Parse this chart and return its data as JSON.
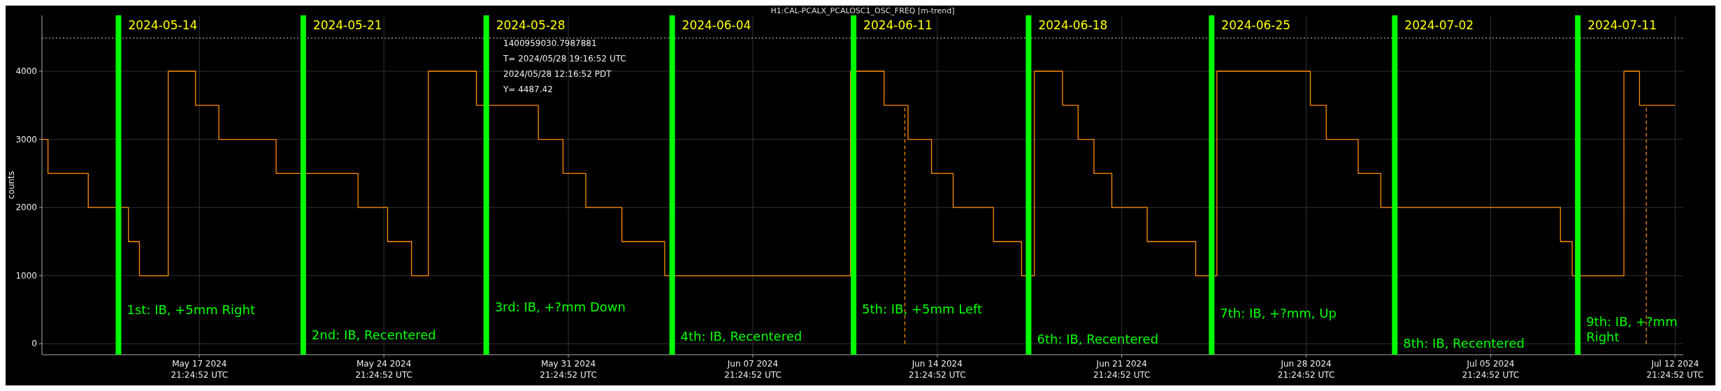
{
  "chart_data": {
    "type": "step",
    "title": "H1:CAL-PCALX_PCALOSC1_OSC_FREQ [m-trend]",
    "ylabel": "counts",
    "xlim": [
      "2024-05-11T22:00",
      "2024-07-13T04:50"
    ],
    "xticks": [
      {
        "value": "2024-05-17T21:24:52",
        "label": "May 17 2024\n21:24:52 UTC"
      },
      {
        "value": "2024-05-24T21:24:52",
        "label": "May 24 2024\n21:24:52 UTC"
      },
      {
        "value": "2024-05-31T21:24:52",
        "label": "May 31 2024\n21:24:52 UTC"
      },
      {
        "value": "2024-06-07T21:24:52",
        "label": "Jun 07 2024\n21:24:52 UTC"
      },
      {
        "value": "2024-06-14T21:24:52",
        "label": "Jun 14 2024\n21:24:52 UTC"
      },
      {
        "value": "2024-06-21T21:24:52",
        "label": "Jun 21 2024\n21:24:52 UTC"
      },
      {
        "value": "2024-06-28T21:24:52",
        "label": "Jun 28 2024\n21:24:52 UTC"
      },
      {
        "value": "2024-07-05T21:24:52",
        "label": "Jul 05 2024\n21:24:52 UTC"
      },
      {
        "value": "2024-07-12T21:24:52",
        "label": "Jul 12 2024\n21:24:52 UTC"
      }
    ],
    "ylim": [
      -160,
      4820
    ],
    "yticks": [
      0,
      1000,
      2000,
      3000,
      4000
    ],
    "grid": true,
    "series": [
      {
        "color": "#ff8c00",
        "x": [
          "2024-05-11T22:00",
          "2024-05-12T03:30",
          "2024-05-13T16:12",
          "2024-05-15T04:48",
          "2024-05-15T14:48",
          "2024-05-16T17:00",
          "2024-05-17T17:54",
          "2024-05-18T15:06",
          "2024-05-20T19:18",
          "2024-05-23T21:54",
          "2024-05-25T00:48",
          "2024-05-25T22:36",
          "2024-05-26T13:54",
          "2024-05-28T09:42",
          "2024-05-30T18:06",
          "2024-05-31T16:36",
          "2024-06-01T13:18",
          "2024-06-02T22:12",
          "2024-06-04T13:12",
          "2024-06-11T14:24",
          "2024-06-12T21:00",
          "2024-06-13T18:48",
          "2024-06-14T16:12",
          "2024-06-15T11:54",
          "2024-06-17T00:36",
          "2024-06-18T02:12",
          "2024-06-18T13:54",
          "2024-06-19T15:30",
          "2024-06-20T05:42",
          "2024-06-20T20:06",
          "2024-06-21T12:24",
          "2024-06-22T20:36",
          "2024-06-24T16:48",
          "2024-06-25T12:06",
          "2024-06-29T01:12",
          "2024-06-29T15:42",
          "2024-06-30T20:48",
          "2024-07-01T17:24",
          "2024-07-08T13:00",
          "2024-07-08T23:42",
          "2024-07-10T22:48",
          "2024-07-11T13:00",
          "2024-07-12T21:24"
        ],
        "values": [
          3000,
          2500,
          2000,
          1500,
          1000,
          4000,
          3500,
          3000,
          2500,
          2000,
          1500,
          1000,
          4000,
          3500,
          3000,
          2500,
          2000,
          1500,
          1000,
          4000,
          3500,
          3000,
          2500,
          2000,
          1500,
          1000,
          4000,
          3500,
          3000,
          2500,
          2000,
          1500,
          1000,
          4000,
          3500,
          3000,
          2500,
          2000,
          1500,
          1000,
          4000,
          3500,
          3500
        ]
      },
      {
        "type": "line",
        "color": "#ff8c00",
        "line_style": "dashed",
        "x": [
          "2024-06-13T15:54",
          "2024-06-13T15:54"
        ],
        "values": [
          0,
          3500
        ]
      },
      {
        "type": "line",
        "color": "#ff8c00",
        "line_style": "dashed",
        "x": [
          "2024-07-11T19:12",
          "2024-07-11T19:12"
        ],
        "values": [
          0,
          3500
        ]
      }
    ],
    "ref_lines": [
      {
        "axis": "y",
        "value": 4487.42,
        "color": "#cccccc",
        "line_style": "dotted"
      },
      {
        "axis": "x",
        "value": "2024-05-14T19:42",
        "label": "2024-05-14",
        "color": "#00ff00"
      },
      {
        "axis": "x",
        "value": "2024-05-21T20:00",
        "label": "2024-05-21",
        "color": "#00ff00"
      },
      {
        "axis": "x",
        "value": "2024-05-28T18:42",
        "label": "2024-05-28",
        "color": "#00ff00"
      },
      {
        "axis": "x",
        "value": "2024-06-04T20:00",
        "label": "2024-06-04",
        "color": "#00ff00"
      },
      {
        "axis": "x",
        "value": "2024-06-11T17:12",
        "label": "2024-06-11",
        "color": "#00ff00"
      },
      {
        "axis": "x",
        "value": "2024-06-18T08:36",
        "label": "2024-06-18",
        "color": "#00ff00"
      },
      {
        "axis": "x",
        "value": "2024-06-25T07:18",
        "label": "2024-06-25",
        "color": "#00ff00"
      },
      {
        "axis": "x",
        "value": "2024-07-02T06:06",
        "label": "2024-07-02",
        "color": "#00ff00"
      },
      {
        "axis": "x",
        "value": "2024-07-09T04:48",
        "label": "2024-07-11",
        "color": "#00ff00"
      }
    ],
    "annotations": [
      {
        "text": "1st: IB, +5mm Right",
        "x": "2024-05-14T19:42",
        "y": 500
      },
      {
        "text": "2nd: IB, Recentered",
        "x": "2024-05-21T20:00",
        "y": 130
      },
      {
        "text": "3rd: IB, +?mm Down",
        "x": "2024-05-28T18:42",
        "y": 540
      },
      {
        "text": "4th: IB, Recentered",
        "x": "2024-06-04T20:00",
        "y": 110
      },
      {
        "text": "5th: IB, +5mm Left",
        "x": "2024-06-11T17:12",
        "y": 510
      },
      {
        "text": "6th: IB, Recentered",
        "x": "2024-06-18T08:36",
        "y": 70
      },
      {
        "text": "7th: IB, +?mm, Up",
        "x": "2024-06-25T07:18",
        "y": 440
      },
      {
        "text": "8th: IB, Recentered",
        "x": "2024-07-02T06:06",
        "y": 0
      },
      {
        "text": "9th: IB, +?mm Right",
        "x": "2024-07-09T04:48",
        "y": 320
      },
      "1400959030.7987881",
      "T= 2024/05/28 19:16:52 UTC",
      "2024/05/28 12:16:52 PDT",
      "Y= 4487.42"
    ]
  }
}
